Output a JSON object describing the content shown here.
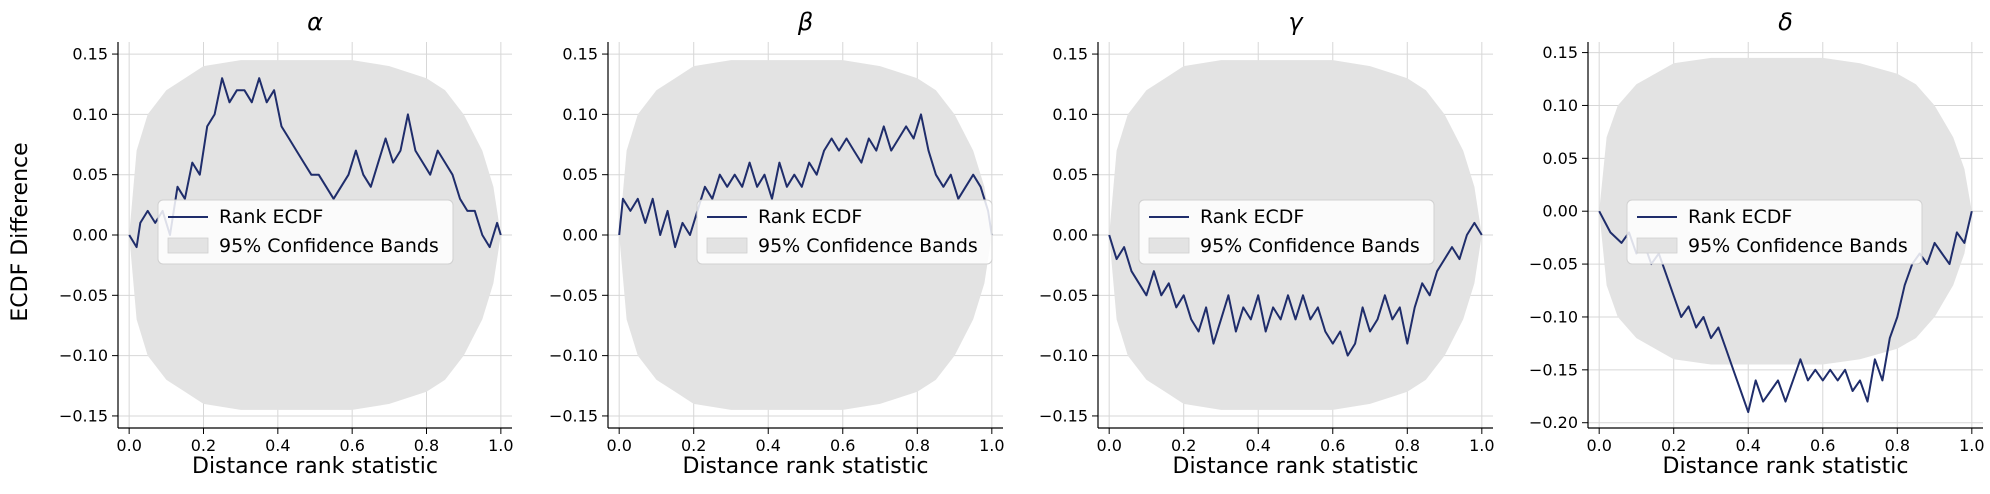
{
  "figure": {
    "shared_ylabel": "ECDF Difference",
    "legend_labels": [
      "Rank ECDF",
      "95% Confidence Bands"
    ],
    "line_color": "#1f2d6b",
    "band_color": "#e3e3e3",
    "grid_color": "#d7d7d7"
  },
  "chart_data": [
    {
      "type": "line",
      "title": "α",
      "xlabel": "Distance rank statistic",
      "ylabel": "ECDF Difference",
      "xlim": [
        -0.03,
        1.03
      ],
      "ylim": [
        -0.16,
        0.16
      ],
      "x_ticks": [
        "0.0",
        "0.2",
        "0.4",
        "0.6",
        "0.8",
        "1.0"
      ],
      "y_ticks": [
        "−0.15",
        "−0.10",
        "−0.05",
        "0.00",
        "0.05",
        "0.10",
        "0.15"
      ],
      "y_tick_values": [
        -0.15,
        -0.1,
        -0.05,
        0.0,
        0.05,
        0.1,
        0.15
      ],
      "grid": true,
      "legend_position": "center",
      "series": [
        {
          "name": "Rank ECDF",
          "x": [
            0.0,
            0.02,
            0.03,
            0.05,
            0.07,
            0.09,
            0.11,
            0.13,
            0.15,
            0.17,
            0.19,
            0.21,
            0.23,
            0.25,
            0.27,
            0.29,
            0.31,
            0.33,
            0.35,
            0.37,
            0.39,
            0.41,
            0.43,
            0.45,
            0.47,
            0.49,
            0.51,
            0.53,
            0.55,
            0.57,
            0.59,
            0.61,
            0.63,
            0.65,
            0.67,
            0.69,
            0.71,
            0.73,
            0.75,
            0.77,
            0.79,
            0.81,
            0.83,
            0.85,
            0.87,
            0.89,
            0.91,
            0.93,
            0.95,
            0.97,
            0.99,
            1.0
          ],
          "y": [
            0.0,
            -0.01,
            0.01,
            0.02,
            0.01,
            0.02,
            0.0,
            0.04,
            0.03,
            0.06,
            0.05,
            0.09,
            0.1,
            0.13,
            0.11,
            0.12,
            0.12,
            0.11,
            0.13,
            0.11,
            0.12,
            0.09,
            0.08,
            0.07,
            0.06,
            0.05,
            0.05,
            0.04,
            0.03,
            0.04,
            0.05,
            0.07,
            0.05,
            0.04,
            0.06,
            0.08,
            0.06,
            0.07,
            0.1,
            0.07,
            0.06,
            0.05,
            0.07,
            0.06,
            0.05,
            0.03,
            0.02,
            0.02,
            0.0,
            -0.01,
            0.01,
            0.0
          ]
        },
        {
          "name": "95% Confidence Bands",
          "x": [
            0.0,
            0.02,
            0.05,
            0.1,
            0.15,
            0.2,
            0.3,
            0.4,
            0.5,
            0.6,
            0.7,
            0.8,
            0.85,
            0.9,
            0.95,
            0.98,
            1.0
          ],
          "upper": [
            0.0,
            0.07,
            0.1,
            0.12,
            0.13,
            0.14,
            0.145,
            0.145,
            0.145,
            0.145,
            0.14,
            0.13,
            0.12,
            0.1,
            0.07,
            0.04,
            0.0
          ],
          "lower": [
            0.0,
            -0.07,
            -0.1,
            -0.12,
            -0.13,
            -0.14,
            -0.145,
            -0.145,
            -0.145,
            -0.145,
            -0.14,
            -0.13,
            -0.12,
            -0.1,
            -0.07,
            -0.04,
            0.0
          ]
        }
      ]
    },
    {
      "type": "line",
      "title": "β",
      "xlabel": "Distance rank statistic",
      "xlim": [
        -0.03,
        1.03
      ],
      "ylim": [
        -0.16,
        0.16
      ],
      "x_ticks": [
        "0.0",
        "0.2",
        "0.4",
        "0.6",
        "0.8",
        "1.0"
      ],
      "y_ticks": [
        "−0.15",
        "−0.10",
        "−0.05",
        "0.00",
        "0.05",
        "0.10",
        "0.15"
      ],
      "y_tick_values": [
        -0.15,
        -0.1,
        -0.05,
        0.0,
        0.05,
        0.1,
        0.15
      ],
      "grid": true,
      "legend_position": "lower right",
      "series": [
        {
          "name": "Rank ECDF",
          "x": [
            0.0,
            0.01,
            0.03,
            0.05,
            0.07,
            0.09,
            0.11,
            0.13,
            0.15,
            0.17,
            0.19,
            0.21,
            0.23,
            0.25,
            0.27,
            0.29,
            0.31,
            0.33,
            0.35,
            0.37,
            0.39,
            0.41,
            0.43,
            0.45,
            0.47,
            0.49,
            0.51,
            0.53,
            0.55,
            0.57,
            0.59,
            0.61,
            0.63,
            0.65,
            0.67,
            0.69,
            0.71,
            0.73,
            0.75,
            0.77,
            0.79,
            0.81,
            0.83,
            0.85,
            0.87,
            0.89,
            0.91,
            0.93,
            0.95,
            0.97,
            0.99,
            1.0
          ],
          "y": [
            0.0,
            0.03,
            0.02,
            0.03,
            0.01,
            0.03,
            0.0,
            0.02,
            -0.01,
            0.01,
            0.0,
            0.02,
            0.04,
            0.03,
            0.05,
            0.04,
            0.05,
            0.04,
            0.06,
            0.04,
            0.05,
            0.03,
            0.06,
            0.04,
            0.05,
            0.04,
            0.06,
            0.05,
            0.07,
            0.08,
            0.07,
            0.08,
            0.07,
            0.06,
            0.08,
            0.07,
            0.09,
            0.07,
            0.08,
            0.09,
            0.08,
            0.1,
            0.07,
            0.05,
            0.04,
            0.05,
            0.03,
            0.04,
            0.05,
            0.04,
            0.02,
            0.0
          ]
        },
        {
          "name": "95% Confidence Bands",
          "x": [
            0.0,
            0.02,
            0.05,
            0.1,
            0.15,
            0.2,
            0.3,
            0.4,
            0.5,
            0.6,
            0.7,
            0.8,
            0.85,
            0.9,
            0.95,
            0.98,
            1.0
          ],
          "upper": [
            0.0,
            0.07,
            0.1,
            0.12,
            0.13,
            0.14,
            0.145,
            0.145,
            0.145,
            0.145,
            0.14,
            0.13,
            0.12,
            0.1,
            0.07,
            0.04,
            0.0
          ],
          "lower": [
            0.0,
            -0.07,
            -0.1,
            -0.12,
            -0.13,
            -0.14,
            -0.145,
            -0.145,
            -0.145,
            -0.145,
            -0.14,
            -0.13,
            -0.12,
            -0.1,
            -0.07,
            -0.04,
            0.0
          ]
        }
      ]
    },
    {
      "type": "line",
      "title": "γ",
      "xlabel": "Distance rank statistic",
      "xlim": [
        -0.03,
        1.03
      ],
      "ylim": [
        -0.16,
        0.16
      ],
      "x_ticks": [
        "0.0",
        "0.2",
        "0.4",
        "0.6",
        "0.8",
        "1.0"
      ],
      "y_ticks": [
        "−0.15",
        "−0.10",
        "−0.05",
        "0.00",
        "0.05",
        "0.10",
        "0.15"
      ],
      "y_tick_values": [
        -0.15,
        -0.1,
        -0.05,
        0.0,
        0.05,
        0.1,
        0.15
      ],
      "grid": true,
      "legend_position": "center",
      "series": [
        {
          "name": "Rank ECDF",
          "x": [
            0.0,
            0.02,
            0.04,
            0.06,
            0.08,
            0.1,
            0.12,
            0.14,
            0.16,
            0.18,
            0.2,
            0.22,
            0.24,
            0.26,
            0.28,
            0.3,
            0.32,
            0.34,
            0.36,
            0.38,
            0.4,
            0.42,
            0.44,
            0.46,
            0.48,
            0.5,
            0.52,
            0.54,
            0.56,
            0.58,
            0.6,
            0.62,
            0.64,
            0.66,
            0.68,
            0.7,
            0.72,
            0.74,
            0.76,
            0.78,
            0.8,
            0.82,
            0.84,
            0.86,
            0.88,
            0.9,
            0.92,
            0.94,
            0.96,
            0.98,
            1.0
          ],
          "y": [
            0.0,
            -0.02,
            -0.01,
            -0.03,
            -0.04,
            -0.05,
            -0.03,
            -0.05,
            -0.04,
            -0.06,
            -0.05,
            -0.07,
            -0.08,
            -0.06,
            -0.09,
            -0.07,
            -0.05,
            -0.08,
            -0.06,
            -0.07,
            -0.05,
            -0.08,
            -0.06,
            -0.07,
            -0.05,
            -0.07,
            -0.05,
            -0.07,
            -0.06,
            -0.08,
            -0.09,
            -0.08,
            -0.1,
            -0.09,
            -0.06,
            -0.08,
            -0.07,
            -0.05,
            -0.07,
            -0.06,
            -0.09,
            -0.06,
            -0.04,
            -0.05,
            -0.03,
            -0.02,
            -0.01,
            -0.02,
            0.0,
            0.01,
            0.0
          ]
        },
        {
          "name": "95% Confidence Bands",
          "x": [
            0.0,
            0.02,
            0.05,
            0.1,
            0.15,
            0.2,
            0.3,
            0.4,
            0.5,
            0.6,
            0.7,
            0.8,
            0.85,
            0.9,
            0.95,
            0.98,
            1.0
          ],
          "upper": [
            0.0,
            0.07,
            0.1,
            0.12,
            0.13,
            0.14,
            0.145,
            0.145,
            0.145,
            0.145,
            0.14,
            0.13,
            0.12,
            0.1,
            0.07,
            0.04,
            0.0
          ],
          "lower": [
            0.0,
            -0.07,
            -0.1,
            -0.12,
            -0.13,
            -0.14,
            -0.145,
            -0.145,
            -0.145,
            -0.145,
            -0.14,
            -0.13,
            -0.12,
            -0.1,
            -0.07,
            -0.04,
            0.0
          ]
        }
      ]
    },
    {
      "type": "line",
      "title": "δ",
      "xlabel": "Distance rank statistic",
      "xlim": [
        -0.03,
        1.03
      ],
      "ylim": [
        -0.205,
        0.16
      ],
      "x_ticks": [
        "0.0",
        "0.2",
        "0.4",
        "0.6",
        "0.8",
        "1.0"
      ],
      "y_ticks": [
        "−0.20",
        "−0.15",
        "−0.10",
        "−0.05",
        "0.00",
        "0.05",
        "0.10",
        "0.15"
      ],
      "y_tick_values": [
        -0.2,
        -0.15,
        -0.1,
        -0.05,
        0.0,
        0.05,
        0.1,
        0.15
      ],
      "grid": true,
      "legend_position": "upper right",
      "series": [
        {
          "name": "Rank ECDF",
          "x": [
            0.0,
            0.03,
            0.06,
            0.08,
            0.1,
            0.12,
            0.14,
            0.16,
            0.18,
            0.2,
            0.22,
            0.24,
            0.26,
            0.28,
            0.3,
            0.32,
            0.34,
            0.36,
            0.38,
            0.4,
            0.42,
            0.44,
            0.46,
            0.48,
            0.5,
            0.52,
            0.54,
            0.56,
            0.58,
            0.6,
            0.62,
            0.64,
            0.66,
            0.68,
            0.7,
            0.72,
            0.74,
            0.76,
            0.78,
            0.8,
            0.82,
            0.84,
            0.86,
            0.88,
            0.9,
            0.92,
            0.94,
            0.96,
            0.98,
            1.0
          ],
          "y": [
            0.0,
            -0.02,
            -0.03,
            -0.02,
            -0.04,
            -0.03,
            -0.05,
            -0.04,
            -0.06,
            -0.08,
            -0.1,
            -0.09,
            -0.11,
            -0.1,
            -0.12,
            -0.11,
            -0.13,
            -0.15,
            -0.17,
            -0.19,
            -0.16,
            -0.18,
            -0.17,
            -0.16,
            -0.18,
            -0.16,
            -0.14,
            -0.16,
            -0.15,
            -0.16,
            -0.15,
            -0.16,
            -0.15,
            -0.17,
            -0.16,
            -0.18,
            -0.14,
            -0.16,
            -0.12,
            -0.1,
            -0.07,
            -0.05,
            -0.04,
            -0.05,
            -0.03,
            -0.04,
            -0.05,
            -0.02,
            -0.03,
            0.0
          ]
        },
        {
          "name": "95% Confidence Bands",
          "x": [
            0.0,
            0.02,
            0.05,
            0.1,
            0.15,
            0.2,
            0.3,
            0.4,
            0.5,
            0.6,
            0.7,
            0.8,
            0.85,
            0.9,
            0.95,
            0.98,
            1.0
          ],
          "upper": [
            0.0,
            0.07,
            0.1,
            0.12,
            0.13,
            0.14,
            0.145,
            0.145,
            0.145,
            0.145,
            0.14,
            0.13,
            0.12,
            0.1,
            0.07,
            0.04,
            0.0
          ],
          "lower": [
            0.0,
            -0.07,
            -0.1,
            -0.12,
            -0.13,
            -0.14,
            -0.145,
            -0.145,
            -0.145,
            -0.145,
            -0.14,
            -0.13,
            -0.12,
            -0.1,
            -0.07,
            -0.04,
            0.0
          ]
        }
      ]
    }
  ]
}
